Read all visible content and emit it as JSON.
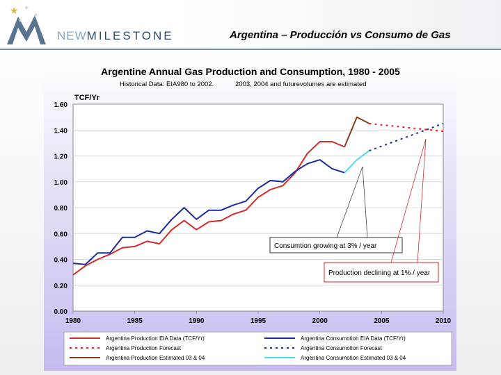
{
  "header": {
    "logo_text_new": "NEW",
    "logo_text_rest": "MILESTONE",
    "slide_title": "Argentina – Producción vs Consumo de Gas"
  },
  "chart_data": {
    "type": "line",
    "title": "Argentine Annual Gas Production and Consumption, 1980 - 2005",
    "subtitle_left": "Historical Data: EIA980 to 2002.",
    "subtitle_right": "2003, 2004 and futurevolumes are  estimated",
    "ylabel": "TCF/Yr",
    "xlabel": "",
    "xlim": [
      1980,
      2010
    ],
    "ylim": [
      0,
      1.6
    ],
    "x_ticks": [
      "1980",
      "1985",
      "1990",
      "1995",
      "2000",
      "2005",
      "2010"
    ],
    "y_ticks": [
      "0.00",
      "0.20",
      "0.40",
      "0.60",
      "0.80",
      "1.00",
      "1.20",
      "1.40",
      "1.60"
    ],
    "series": [
      {
        "name": "Argentina Production   EIA Data  (TCF/Yr)",
        "style": "solid",
        "color": "#d42a2a",
        "x": [
          1980,
          1981,
          1982,
          1983,
          1984,
          1985,
          1986,
          1987,
          1988,
          1989,
          1990,
          1991,
          1992,
          1993,
          1994,
          1995,
          1996,
          1997,
          1998,
          1999,
          2000,
          2001,
          2002
        ],
        "y": [
          0.28,
          0.35,
          0.4,
          0.44,
          0.49,
          0.5,
          0.54,
          0.52,
          0.63,
          0.7,
          0.63,
          0.69,
          0.7,
          0.75,
          0.78,
          0.88,
          0.94,
          0.97,
          1.07,
          1.22,
          1.31,
          1.31,
          1.27
        ]
      },
      {
        "name": "Argentina Production  Forecast",
        "style": "dotted",
        "color": "#d42a2a",
        "x": [
          2004,
          2010
        ],
        "y": [
          1.45,
          1.39
        ]
      },
      {
        "name": "Argentina Production  Estimated      03 & 04",
        "style": "solid",
        "color": "#8a3b1f",
        "x": [
          2002,
          2003,
          2004
        ],
        "y": [
          1.27,
          1.5,
          1.45
        ]
      },
      {
        "name": "Argentina Consumotion   EIA Data  (TCF/Yr)",
        "style": "solid",
        "color": "#1c2aa0",
        "x": [
          1980,
          1981,
          1982,
          1983,
          1984,
          1985,
          1986,
          1987,
          1988,
          1989,
          1990,
          1991,
          1992,
          1993,
          1994,
          1995,
          1996,
          1997,
          1998,
          1999,
          2000,
          2001,
          2002
        ],
        "y": [
          0.37,
          0.36,
          0.45,
          0.45,
          0.57,
          0.57,
          0.62,
          0.6,
          0.71,
          0.8,
          0.71,
          0.78,
          0.78,
          0.82,
          0.85,
          0.95,
          1.01,
          1.0,
          1.08,
          1.14,
          1.17,
          1.1,
          1.07
        ]
      },
      {
        "name": "Argentina Consumotion  Forecast",
        "style": "dotted",
        "color": "#1c2aa0",
        "x": [
          2004,
          2010
        ],
        "y": [
          1.24,
          1.45
        ]
      },
      {
        "name": "Argentina Consumotion Estimated      03 & 04",
        "style": "solid",
        "color": "#4fd8f0",
        "x": [
          2002,
          2003,
          2004
        ],
        "y": [
          1.07,
          1.17,
          1.24
        ]
      }
    ],
    "annotations": [
      {
        "text": "Consumtion growing at 3% / year",
        "color": "#000000"
      },
      {
        "text": "Production declining at 1% / year",
        "color": "#d42a2a"
      }
    ],
    "legend_position": "bottom"
  }
}
